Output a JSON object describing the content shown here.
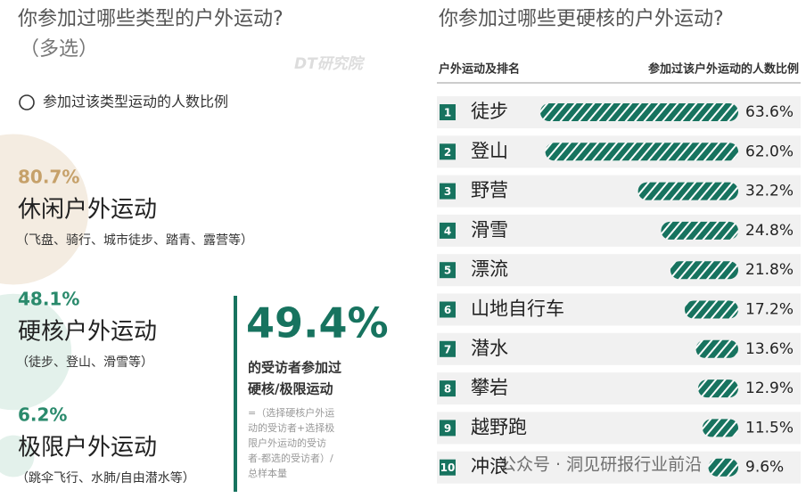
{
  "chart_data": [
    {
      "type": "bubble",
      "title": "你参加过哪些类型的户外运动?",
      "subtitle": "（多选）",
      "legend": "参加过该类型运动的人数比例",
      "categories": [
        "休闲户外运动",
        "硬核户外运动",
        "极限户外运动"
      ],
      "descriptions": [
        "（飞盘、骑行、城市徒步、踏青、露营等）",
        "（徒步、登山、滑雪等）",
        "（跳伞飞行、水肺/自由潜水等）"
      ],
      "values": [
        80.7,
        48.1,
        6.2
      ],
      "value_labels": [
        "80.7%",
        "48.1%",
        "6.2%"
      ],
      "colors": [
        "#f4ece1",
        "#e3f1eb",
        "#e3f1eb"
      ],
      "label_colors": [
        "#c6a16a",
        "#2a8a6c",
        "#2a8a6c"
      ]
    },
    {
      "type": "bar",
      "orientation": "horizontal",
      "title": "你参加过哪些更硬核的户外运动?",
      "category_header": "户外运动及排名",
      "value_header": "参加过该户外运动的人数比例",
      "ranks": [
        1,
        2,
        3,
        4,
        5,
        6,
        7,
        8,
        9,
        10
      ],
      "categories": [
        "徒步",
        "登山",
        "野营",
        "滑雪",
        "漂流",
        "山地自行车",
        "潜水",
        "攀岩",
        "越野跑",
        "冲浪"
      ],
      "values": [
        63.6,
        62.0,
        32.2,
        24.8,
        21.8,
        17.2,
        13.6,
        12.9,
        11.5,
        9.6
      ],
      "value_labels": [
        "63.6%",
        "62.0%",
        "32.2%",
        "24.8%",
        "21.8%",
        "17.2%",
        "13.6%",
        "12.9%",
        "11.5%",
        "9.6%"
      ],
      "color": "#17735f"
    }
  ],
  "callout": {
    "headline": "49.4%",
    "text": [
      "的受访者参加过",
      "硬核/极限运动"
    ],
    "note": [
      "=（选择硬核户外运",
      "动的受访者+选择极",
      "限户外运动的受访",
      "者-都选的受访者）/",
      "总样本量"
    ]
  },
  "watermarks": [
    "DT研究院",
    "公众号 · 洞见研报行业前沿"
  ]
}
